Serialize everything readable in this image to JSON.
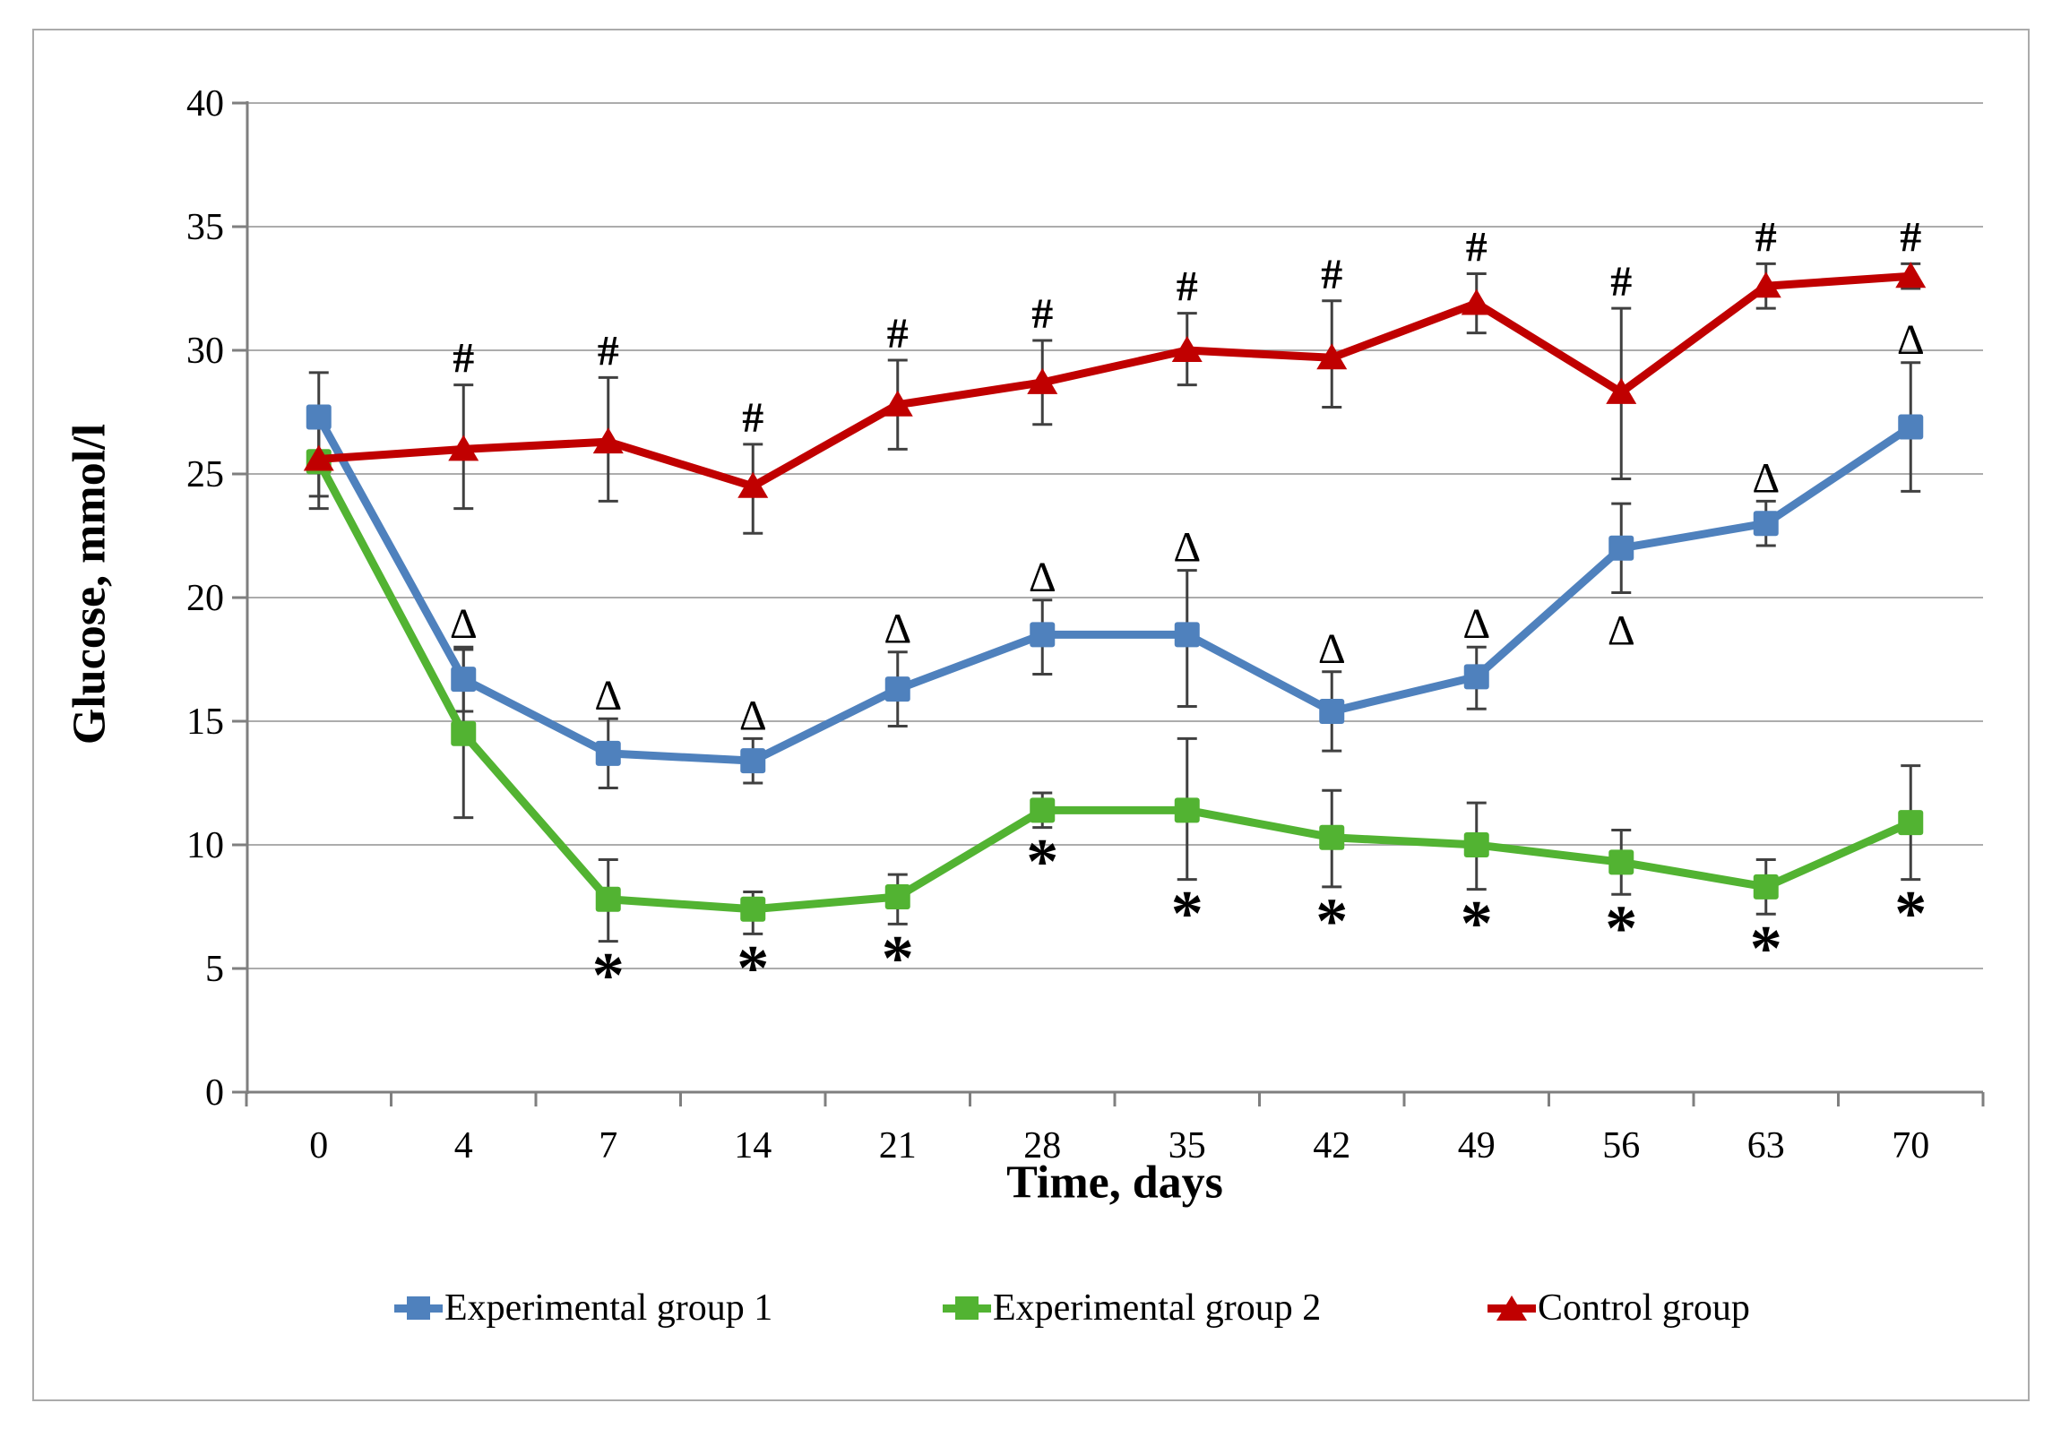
{
  "figure": {
    "background_color": "#ffffff",
    "frame_color": "#ababab",
    "gridline_color": "#acacac",
    "axis_color": "#7f7f7f",
    "error_bar_color": "#404040",
    "text_color": "#000000"
  },
  "chart_data": {
    "type": "line",
    "title": "",
    "xlabel": "Time, days",
    "ylabel": "Glucose, mmol/l",
    "categories": [
      0,
      4,
      7,
      14,
      21,
      28,
      35,
      42,
      49,
      56,
      63,
      70
    ],
    "ylim": [
      0,
      40
    ],
    "yticks": [
      0,
      5,
      10,
      15,
      20,
      25,
      30,
      35,
      40
    ],
    "grid": true,
    "legend_position": "bottom",
    "series": [
      {
        "name": "Experimental group 1",
        "color": "#4f81bd",
        "marker": "square",
        "values": [
          27.3,
          16.7,
          13.7,
          13.4,
          16.3,
          18.5,
          18.5,
          15.4,
          16.8,
          22.0,
          23.0,
          26.9
        ],
        "err_up": [
          1.8,
          1.3,
          1.4,
          0.9,
          1.5,
          1.4,
          2.6,
          1.6,
          1.2,
          1.8,
          0.9,
          2.6
        ],
        "err_down": [
          1.8,
          1.3,
          1.4,
          0.9,
          1.5,
          1.6,
          2.9,
          1.6,
          1.3,
          1.8,
          0.9,
          2.6
        ],
        "annotation": {
          "symbol": "Δ",
          "days": [
            4,
            7,
            14,
            21,
            28,
            35,
            42,
            49,
            56,
            63,
            70
          ],
          "position": "above",
          "below_days": [
            56
          ]
        }
      },
      {
        "name": "Experimental group 2",
        "color": "#52b332",
        "marker": "square",
        "values": [
          25.5,
          14.5,
          7.8,
          7.4,
          7.9,
          11.4,
          11.4,
          10.3,
          10.0,
          9.3,
          8.3,
          10.9
        ],
        "err_up": [
          1.9,
          3.4,
          1.6,
          0.7,
          0.9,
          0.7,
          2.9,
          1.9,
          1.7,
          1.3,
          1.1,
          2.3
        ],
        "err_down": [
          1.9,
          3.4,
          1.7,
          1.0,
          1.1,
          0.7,
          2.8,
          2.0,
          1.8,
          1.3,
          1.1,
          2.3
        ],
        "annotation": {
          "symbol": "*",
          "days": [
            7,
            14,
            21,
            28,
            35,
            42,
            49,
            56,
            63,
            70
          ],
          "position": "below",
          "below_days": []
        }
      },
      {
        "name": "Control group",
        "color": "#c00000",
        "marker": "triangle",
        "values": [
          25.6,
          26.0,
          26.3,
          24.5,
          27.8,
          28.7,
          30.0,
          29.7,
          31.9,
          28.3,
          32.6,
          33.0
        ],
        "err_up": [
          1.5,
          2.6,
          2.6,
          1.7,
          1.8,
          1.7,
          1.5,
          2.3,
          1.2,
          3.4,
          0.9,
          0.5
        ],
        "err_down": [
          1.5,
          2.4,
          2.4,
          1.9,
          1.8,
          1.7,
          1.4,
          2.0,
          1.2,
          3.5,
          0.9,
          0.5
        ],
        "annotation": {
          "symbol": "#",
          "days": [
            4,
            7,
            14,
            21,
            28,
            35,
            42,
            49,
            56,
            63,
            70
          ],
          "position": "above",
          "below_days": []
        }
      }
    ]
  }
}
